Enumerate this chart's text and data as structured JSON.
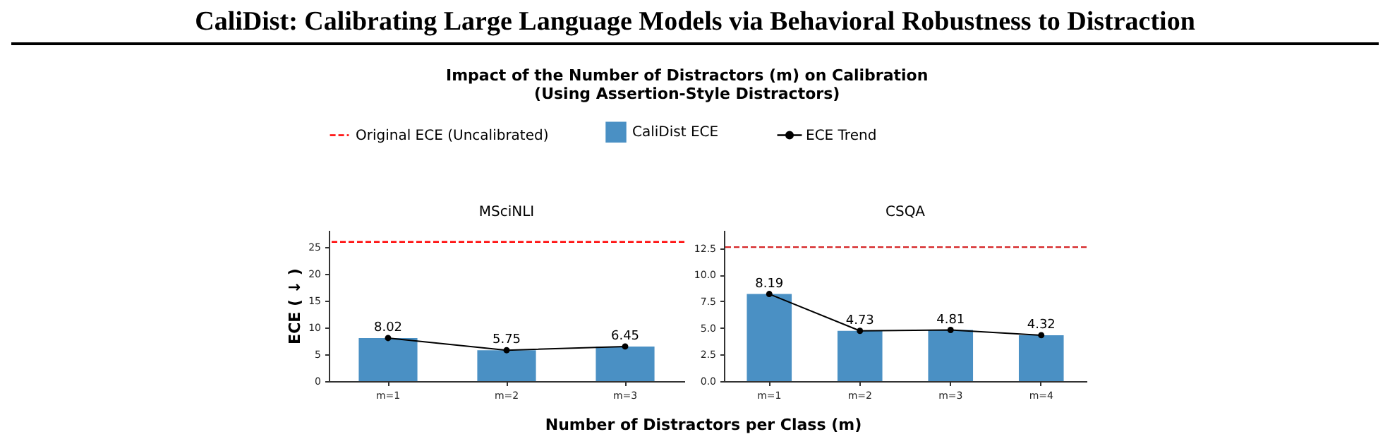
{
  "chart_data": [
    {
      "type": "bar",
      "title": "MSciNLI",
      "annotations": [
        "CaliDist: Calibrating Large Language Models via Behavioral Robustness to Distraction",
        "Impact of the Number of Distractors (m) on Calibration",
        "(Using Assertion-Style Distractors)"
      ],
      "xlabel": "Number of Distractors per Class (m)",
      "ylabel": "ECE ( ↓ )",
      "categories": [
        "m=1",
        "m=2",
        "m=3"
      ],
      "series": [
        {
          "name": "CaliDist ECE",
          "color": "#4a90c4",
          "values": [
            8.02,
            5.75,
            6.45
          ]
        },
        {
          "type": "line",
          "name": "ECE Trend",
          "color": "#000000",
          "values": [
            8.02,
            5.75,
            6.45
          ],
          "value_labels": [
            "8.02",
            "5.75",
            "6.45"
          ]
        }
      ],
      "ref_lines": [
        {
          "axis": "y",
          "value": 25.9,
          "label": "Original ECE (Uncalibrated)",
          "color": "#ff0000",
          "line_style": "dashed"
        }
      ],
      "ylim": [
        0,
        28.1
      ],
      "yticks": [
        0,
        5,
        10,
        15,
        20,
        25
      ],
      "legend": "top",
      "marker": "circle"
    },
    {
      "type": "bar",
      "title": "CSQA",
      "categories": [
        "m=1",
        "m=2",
        "m=3",
        "m=4"
      ],
      "series": [
        {
          "color": "#4a90c4",
          "values": [
            8.19,
            4.73,
            4.81,
            4.32
          ]
        },
        {
          "type": "line",
          "color": "#000000",
          "values": [
            8.19,
            4.73,
            4.81,
            4.32
          ],
          "value_labels": [
            "8.19",
            "4.73",
            "4.81",
            "4.32"
          ]
        }
      ],
      "ref_lines": [
        {
          "axis": "y",
          "value": 12.6,
          "color": "#d62728",
          "line_style": "dashed"
        }
      ],
      "ylim": [
        0,
        14.2
      ],
      "yticks": [
        {
          "value": 0,
          "label": "0.0"
        },
        2.5,
        {
          "value": 5,
          "label": "5.0"
        },
        7.5,
        {
          "value": 10,
          "label": "10.0"
        },
        12.5
      ],
      "marker": "circle"
    }
  ]
}
